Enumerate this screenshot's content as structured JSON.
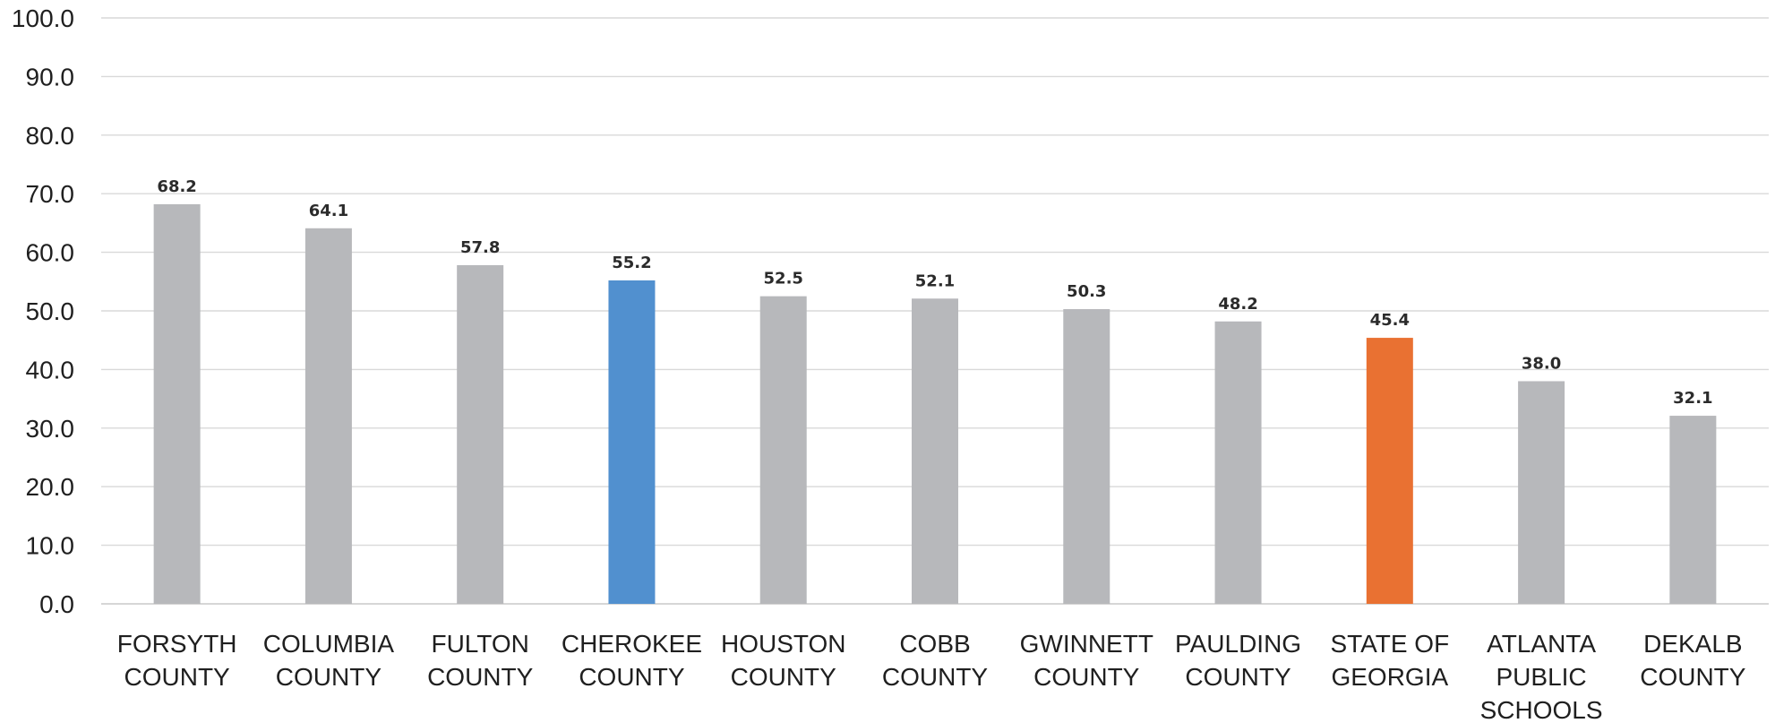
{
  "chart_data": {
    "type": "bar",
    "categories": [
      [
        "FORSYTH",
        "COUNTY"
      ],
      [
        "COLUMBIA",
        "COUNTY"
      ],
      [
        "FULTON",
        "COUNTY"
      ],
      [
        "CHEROKEE",
        "COUNTY"
      ],
      [
        "HOUSTON",
        "COUNTY"
      ],
      [
        "COBB",
        "COUNTY"
      ],
      [
        "GWINNETT",
        "COUNTY"
      ],
      [
        "PAULDING",
        "COUNTY"
      ],
      [
        "STATE OF",
        "GEORGIA"
      ],
      [
        "ATLANTA",
        "PUBLIC",
        "SCHOOLS"
      ],
      [
        "DEKALB",
        "COUNTY"
      ]
    ],
    "values": [
      68.2,
      64.1,
      57.8,
      55.2,
      52.5,
      52.1,
      50.3,
      48.2,
      45.4,
      38.0,
      32.1
    ],
    "data_labels": [
      "68.2",
      "64.1",
      "57.8",
      "55.2",
      "52.5",
      "52.1",
      "50.3",
      "48.2",
      "45.4",
      "38.0",
      "32.1"
    ],
    "colors": [
      "#b7b8bb",
      "#b7b8bb",
      "#b7b8bb",
      "#5190cf",
      "#b7b8bb",
      "#b7b8bb",
      "#b7b8bb",
      "#b7b8bb",
      "#e97132",
      "#b7b8bb",
      "#b7b8bb"
    ],
    "y_ticks": [
      "0.0",
      "10.0",
      "20.0",
      "30.0",
      "40.0",
      "50.0",
      "60.0",
      "70.0",
      "80.0",
      "90.0",
      "100.0"
    ],
    "ylim": [
      0,
      100
    ],
    "grid": true,
    "legend": "none"
  }
}
